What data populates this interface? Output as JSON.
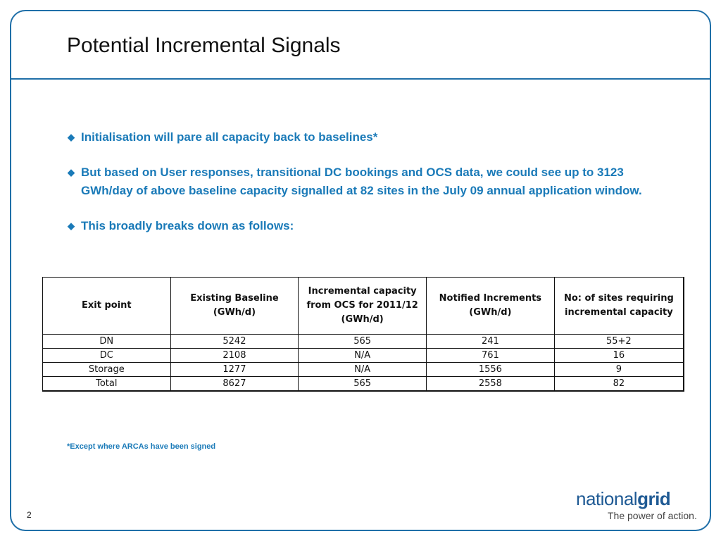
{
  "slide": {
    "title": "Potential Incremental Signals",
    "page_number": "2",
    "footnote": "*Except where ARCAs have been signed"
  },
  "bullets": [
    {
      "icon": "diamond-bullet-icon",
      "text": "Initialisation will pare all capacity back to baselines*"
    },
    {
      "icon": "diamond-bullet-icon",
      "text": "But based on User responses, transitional DC bookings and OCS data, we could see up to 3123 GWh/day of above baseline capacity signalled at 82 sites in the July 09 annual application window."
    },
    {
      "icon": "diamond-bullet-icon",
      "text": "This broadly breaks down as follows:"
    }
  ],
  "table": {
    "headers": [
      "Exit point",
      "Existing Baseline (GWh/d)",
      "Incremental capacity from OCS for 2011/12 (GWh/d)",
      "Notified Increments (GWh/d)",
      "No: of sites requiring incremental capacity"
    ],
    "rows": [
      [
        "DN",
        "5242",
        "565",
        "241",
        "55+2"
      ],
      [
        "DC",
        "2108",
        "N/A",
        "761",
        "16"
      ],
      [
        "Storage",
        "1277",
        "N/A",
        "1556",
        "9"
      ],
      [
        "Total",
        "8627",
        "565",
        "2558",
        "82"
      ]
    ]
  },
  "logo": {
    "word_light": "national",
    "word_bold": "grid",
    "tagline": "The power of action."
  },
  "colors": {
    "accent": "#1f6fa8",
    "bullet_text": "#1a7ab8",
    "logo": "#1f5a94"
  }
}
